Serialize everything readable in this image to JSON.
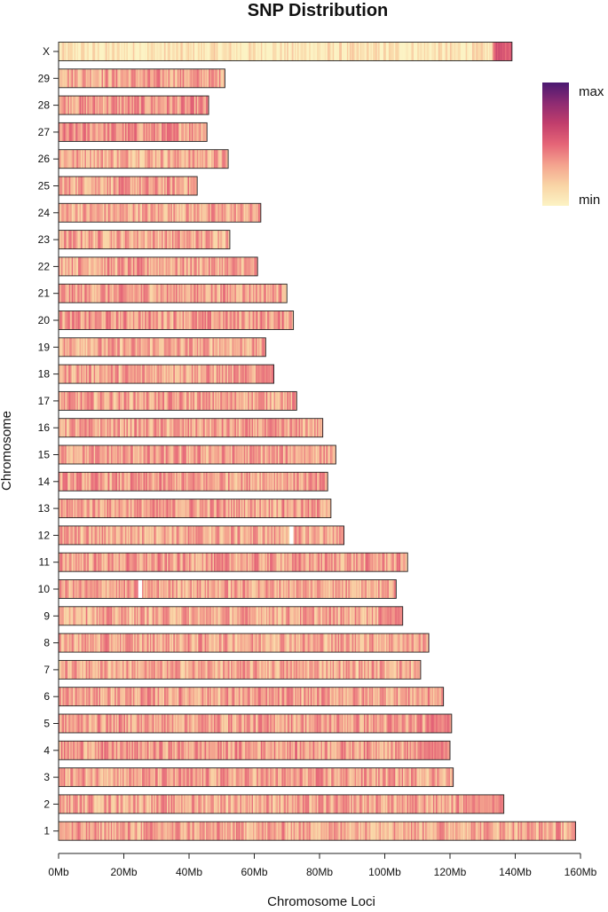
{
  "chart_data": {
    "type": "heatmap",
    "title": "SNP Distribution",
    "xlabel": "Chromosome Loci",
    "ylabel": "Chromosome",
    "xlim_mb": [
      0,
      160
    ],
    "x_ticks": [
      {
        "value": 0,
        "label": "0Mb"
      },
      {
        "value": 20,
        "label": "20Mb"
      },
      {
        "value": 40,
        "label": "40Mb"
      },
      {
        "value": 60,
        "label": "60Mb"
      },
      {
        "value": 80,
        "label": "80Mb"
      },
      {
        "value": 100,
        "label": "100Mb"
      },
      {
        "value": 120,
        "label": "120Mb"
      },
      {
        "value": 140,
        "label": "140Mb"
      },
      {
        "value": 160,
        "label": "160Mb"
      }
    ],
    "chromosomes": [
      {
        "name": "X",
        "length_mb": 139,
        "base_density": 0.05,
        "hotspots": [
          [
            133,
            139,
            0.55
          ]
        ],
        "gaps": []
      },
      {
        "name": "29",
        "length_mb": 51,
        "base_density": 0.32,
        "hotspots": [],
        "gaps": []
      },
      {
        "name": "28",
        "length_mb": 46,
        "base_density": 0.35,
        "hotspots": [],
        "gaps": []
      },
      {
        "name": "27",
        "length_mb": 45.5,
        "base_density": 0.36,
        "hotspots": [],
        "gaps": []
      },
      {
        "name": "26",
        "length_mb": 52,
        "base_density": 0.3,
        "hotspots": [],
        "gaps": []
      },
      {
        "name": "25",
        "length_mb": 42.5,
        "base_density": 0.32,
        "hotspots": [],
        "gaps": []
      },
      {
        "name": "24",
        "length_mb": 62,
        "base_density": 0.3,
        "hotspots": [],
        "gaps": []
      },
      {
        "name": "23",
        "length_mb": 52.5,
        "base_density": 0.31,
        "hotspots": [],
        "gaps": []
      },
      {
        "name": "22",
        "length_mb": 61,
        "base_density": 0.32,
        "hotspots": [],
        "gaps": []
      },
      {
        "name": "21",
        "length_mb": 70,
        "base_density": 0.33,
        "hotspots": [],
        "gaps": []
      },
      {
        "name": "20",
        "length_mb": 72,
        "base_density": 0.34,
        "hotspots": [],
        "gaps": []
      },
      {
        "name": "19",
        "length_mb": 63.5,
        "base_density": 0.3,
        "hotspots": [],
        "gaps": []
      },
      {
        "name": "18",
        "length_mb": 66,
        "base_density": 0.32,
        "hotspots": [
          [
            60,
            66,
            0.45
          ]
        ],
        "gaps": []
      },
      {
        "name": "17",
        "length_mb": 73,
        "base_density": 0.32,
        "hotspots": [],
        "gaps": []
      },
      {
        "name": "16",
        "length_mb": 81,
        "base_density": 0.31,
        "hotspots": [],
        "gaps": []
      },
      {
        "name": "15",
        "length_mb": 85,
        "base_density": 0.32,
        "hotspots": [],
        "gaps": []
      },
      {
        "name": "14",
        "length_mb": 82.5,
        "base_density": 0.33,
        "hotspots": [],
        "gaps": []
      },
      {
        "name": "13",
        "length_mb": 83.5,
        "base_density": 0.33,
        "hotspots": [],
        "gaps": []
      },
      {
        "name": "12",
        "length_mb": 87.5,
        "base_density": 0.3,
        "hotspots": [],
        "gaps": [
          71.2
        ]
      },
      {
        "name": "11",
        "length_mb": 107,
        "base_density": 0.33,
        "hotspots": [],
        "gaps": []
      },
      {
        "name": "10",
        "length_mb": 103.5,
        "base_density": 0.31,
        "hotspots": [],
        "gaps": [
          24.8
        ]
      },
      {
        "name": "9",
        "length_mb": 105.5,
        "base_density": 0.3,
        "hotspots": [
          [
            98,
            105,
            0.42
          ]
        ],
        "gaps": []
      },
      {
        "name": "8",
        "length_mb": 113.5,
        "base_density": 0.31,
        "hotspots": [],
        "gaps": []
      },
      {
        "name": "7",
        "length_mb": 111,
        "base_density": 0.3,
        "hotspots": [],
        "gaps": []
      },
      {
        "name": "6",
        "length_mb": 118,
        "base_density": 0.32,
        "hotspots": [],
        "gaps": []
      },
      {
        "name": "5",
        "length_mb": 120.5,
        "base_density": 0.33,
        "hotspots": [
          [
            114,
            120,
            0.45
          ]
        ],
        "gaps": []
      },
      {
        "name": "4",
        "length_mb": 120,
        "base_density": 0.34,
        "hotspots": [
          [
            110,
            120,
            0.42
          ]
        ],
        "gaps": []
      },
      {
        "name": "3",
        "length_mb": 121,
        "base_density": 0.32,
        "hotspots": [],
        "gaps": []
      },
      {
        "name": "2",
        "length_mb": 136.5,
        "base_density": 0.31,
        "hotspots": [
          [
            124,
            136,
            0.4
          ]
        ],
        "gaps": []
      },
      {
        "name": "1",
        "length_mb": 158.5,
        "base_density": 0.31,
        "hotspots": [],
        "gaps": []
      }
    ],
    "color_scale": {
      "min_label": "min",
      "max_label": "max",
      "stops": [
        "#fcf3c4",
        "#f9d4a5",
        "#f4a38e",
        "#e56577",
        "#c23e6c",
        "#8e2b72",
        "#4a1871"
      ]
    }
  }
}
